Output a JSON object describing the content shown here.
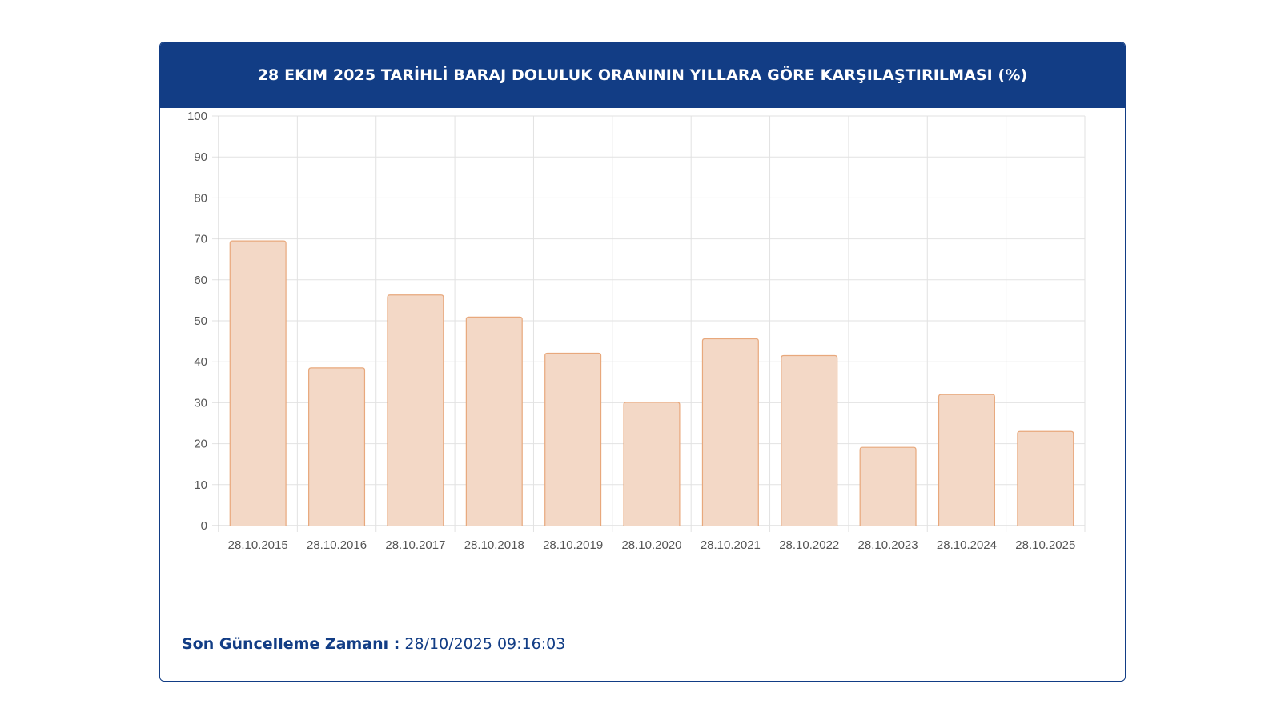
{
  "header": {
    "title": "28 EKIM 2025 TARİHLİ BARAJ DOLULUK ORANININ YILLARA GÖRE KARŞILAŞTIRILMASI (%)"
  },
  "footer": {
    "label": "Son Güncelleme Zamanı :",
    "value": "28/10/2025 09:16:03"
  },
  "colors": {
    "header_bg": "#123d85",
    "bar_fill": "#f3d8c6",
    "bar_stroke": "#e8a87c",
    "grid": "#e2e2e2"
  },
  "chart_data": {
    "type": "bar",
    "categories": [
      "28.10.2015",
      "28.10.2016",
      "28.10.2017",
      "28.10.2018",
      "28.10.2019",
      "28.10.2020",
      "28.10.2021",
      "28.10.2022",
      "28.10.2023",
      "28.10.2024",
      "28.10.2025"
    ],
    "values": [
      69.5,
      38.5,
      56.3,
      50.9,
      42.1,
      30.1,
      45.6,
      41.5,
      19.1,
      32.0,
      23.0
    ],
    "yticks": [
      "0",
      "10",
      "20",
      "30",
      "40",
      "50",
      "60",
      "70",
      "80",
      "90",
      "100"
    ],
    "ylim": [
      0,
      100
    ],
    "grid": true,
    "legend": "none"
  }
}
